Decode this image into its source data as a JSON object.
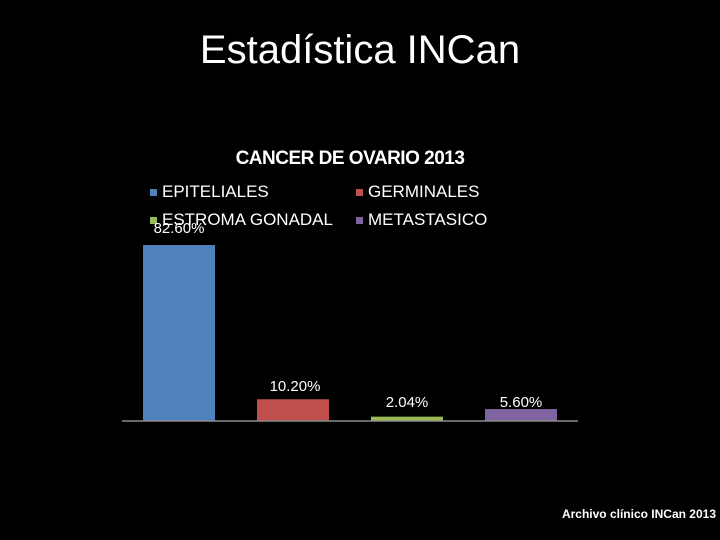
{
  "slide": {
    "title": "Estadística  INCan",
    "footnote": "Archivo clínico INCan 2013"
  },
  "chart_data": {
    "type": "bar",
    "title": "CANCER DE OVARIO   2013",
    "xlabel": "",
    "ylabel": "",
    "ylim": [
      0,
      100
    ],
    "grid": false,
    "legend_position": "top",
    "categories": [
      "EPITELIALES",
      "GERMINALES",
      "ESTROMA GONADAL",
      "METASTASICO"
    ],
    "values": [
      82.6,
      10.2,
      2.04,
      5.6
    ],
    "value_labels": [
      "82.60%",
      "10.20%",
      "2.04%",
      "5.60%"
    ],
    "colors": [
      "#4f81bd",
      "#c0504d",
      "#9bbb59",
      "#8064a2"
    ],
    "legend": [
      {
        "label": "EPITELIALES",
        "color": "#4f81bd"
      },
      {
        "label": "GERMINALES",
        "color": "#c0504d"
      },
      {
        "label": "ESTROMA GONADAL",
        "color": "#9bbb59"
      },
      {
        "label": "METASTASICO",
        "color": "#8064a2"
      }
    ]
  }
}
